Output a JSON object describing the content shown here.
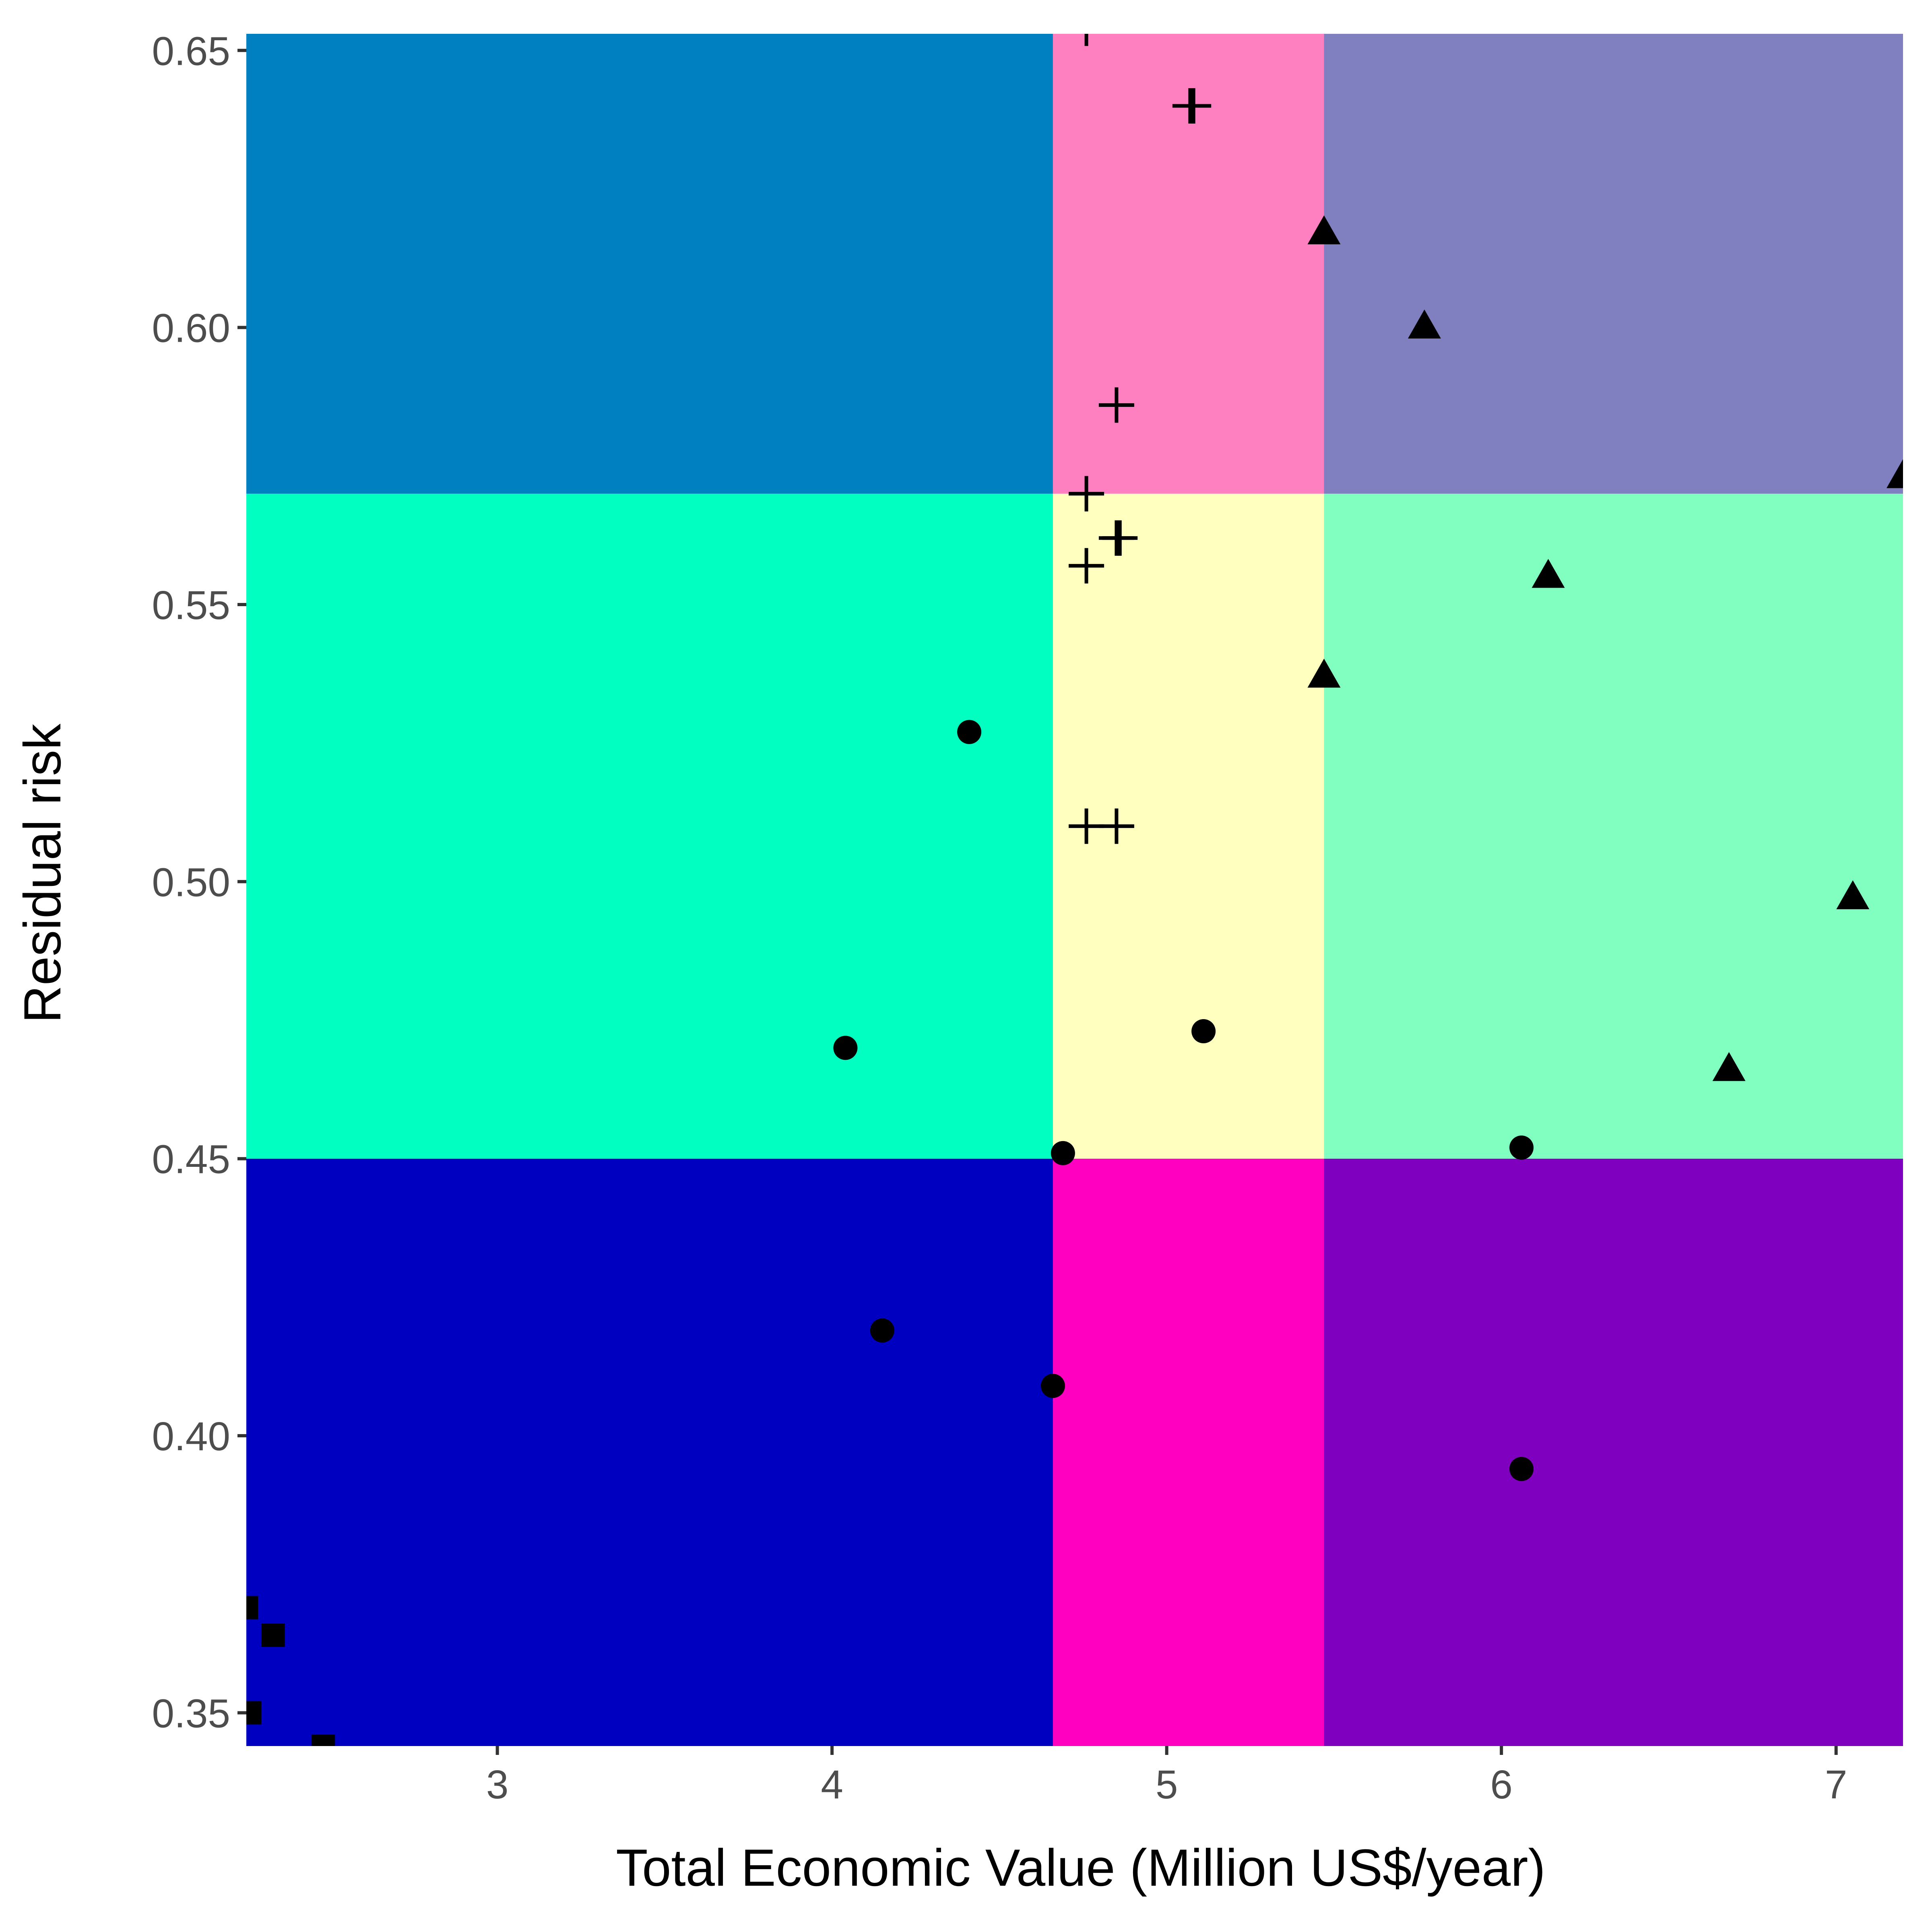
{
  "chart_data": {
    "type": "scatter",
    "title": "",
    "xlabel": "Total Economic Value (Million US$/year)",
    "ylabel": "Residual risk",
    "xlim": [
      2.25,
      7.2
    ],
    "ylim": [
      0.344,
      0.653
    ],
    "x_ticks": [
      3,
      4,
      5,
      6,
      7
    ],
    "x_tick_labels": [
      "3",
      "4",
      "5",
      "6",
      "7"
    ],
    "y_ticks": [
      0.35,
      0.4,
      0.45,
      0.5,
      0.55,
      0.6,
      0.65
    ],
    "y_tick_labels": [
      "0.35",
      "0.40",
      "0.45",
      "0.50",
      "0.55",
      "0.60",
      "0.65"
    ],
    "grid": false,
    "legend": "none",
    "background_regions": {
      "x_breaks": [
        4.66,
        5.47
      ],
      "y_breaks": [
        0.45,
        0.57
      ],
      "colors": [
        [
          "#0000c0",
          "#ff00c0",
          "#8000c0"
        ],
        [
          "#00ffc0",
          "#ffffc0",
          "#80ffc0"
        ],
        [
          "#0080c0",
          "#ff80c0",
          "#8080c0"
        ]
      ]
    },
    "series": [
      {
        "marker": "square",
        "points": [
          {
            "x": 2.25,
            "y": 0.369
          },
          {
            "x": 2.33,
            "y": 0.364
          },
          {
            "x": 2.26,
            "y": 0.35
          },
          {
            "x": 2.48,
            "y": 0.344
          }
        ]
      },
      {
        "marker": "circle",
        "points": [
          {
            "x": 4.41,
            "y": 0.527
          },
          {
            "x": 4.04,
            "y": 0.47
          },
          {
            "x": 5.11,
            "y": 0.473
          },
          {
            "x": 4.69,
            "y": 0.451
          },
          {
            "x": 6.06,
            "y": 0.452
          },
          {
            "x": 4.15,
            "y": 0.419
          },
          {
            "x": 4.66,
            "y": 0.409
          },
          {
            "x": 6.06,
            "y": 0.394
          }
        ]
      },
      {
        "marker": "plus",
        "points": [
          {
            "x": 4.76,
            "y": 0.654
          },
          {
            "x": 5.07,
            "y": 0.64
          },
          {
            "x": 5.08,
            "y": 0.64
          },
          {
            "x": 4.85,
            "y": 0.586
          },
          {
            "x": 4.76,
            "y": 0.57
          },
          {
            "x": 4.85,
            "y": 0.562
          },
          {
            "x": 4.86,
            "y": 0.562
          },
          {
            "x": 4.76,
            "y": 0.557
          },
          {
            "x": 4.76,
            "y": 0.51
          },
          {
            "x": 4.85,
            "y": 0.51
          }
        ]
      },
      {
        "marker": "triangle",
        "points": [
          {
            "x": 5.47,
            "y": 0.617
          },
          {
            "x": 5.77,
            "y": 0.6
          },
          {
            "x": 7.2,
            "y": 0.573
          },
          {
            "x": 6.14,
            "y": 0.555
          },
          {
            "x": 5.47,
            "y": 0.537
          },
          {
            "x": 7.05,
            "y": 0.497
          },
          {
            "x": 6.68,
            "y": 0.466
          }
        ]
      }
    ]
  }
}
